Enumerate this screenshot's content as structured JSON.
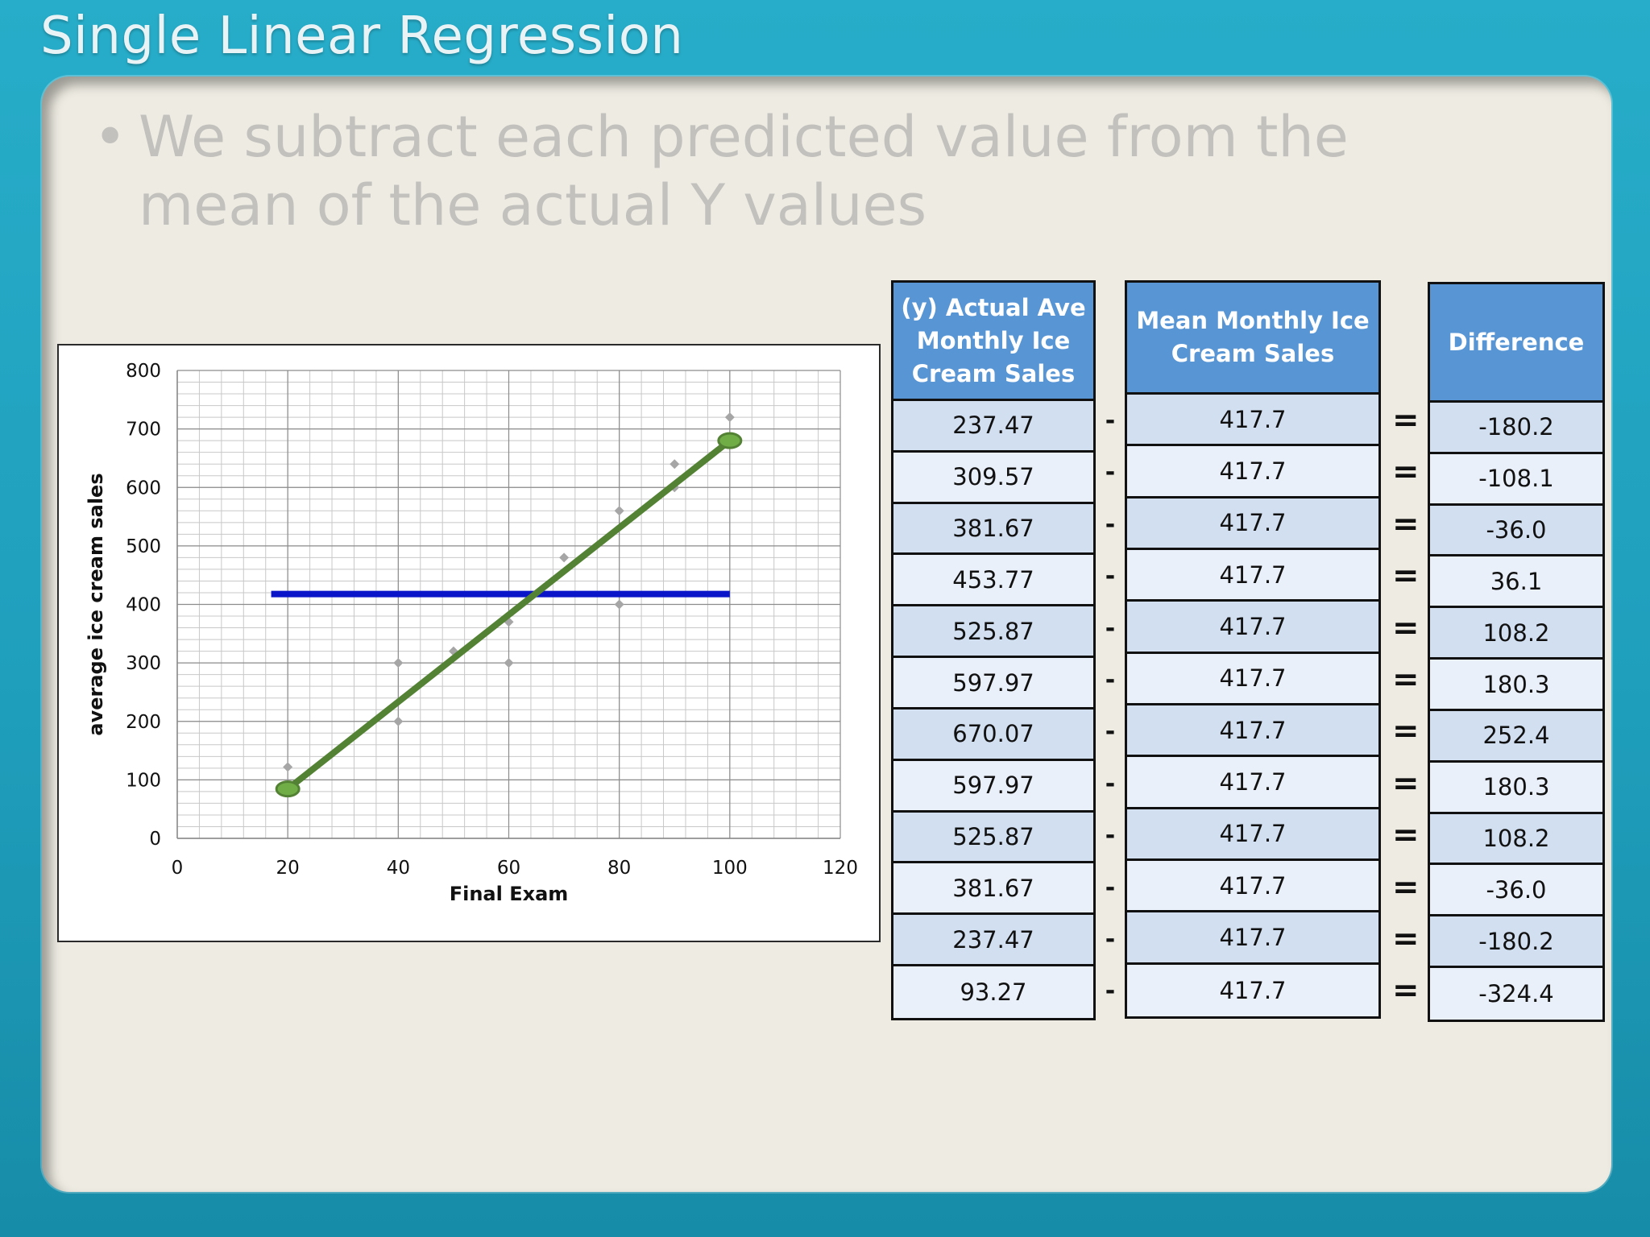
{
  "slide": {
    "title": "Single Linear Regression",
    "bullet": "We subtract each predicted value from the mean of the actual Y values"
  },
  "tables": {
    "actual": {
      "header": "(y) Actual Ave Monthly Ice Cream Sales",
      "values": [
        "237.47",
        "309.57",
        "381.67",
        "453.77",
        "525.87",
        "597.97",
        "670.07",
        "597.97",
        "525.87",
        "381.67",
        "237.47",
        "93.27"
      ]
    },
    "mean": {
      "header": "Mean Monthly Ice Cream Sales",
      "values": [
        "417.7",
        "417.7",
        "417.7",
        "417.7",
        "417.7",
        "417.7",
        "417.7",
        "417.7",
        "417.7",
        "417.7",
        "417.7",
        "417.7"
      ]
    },
    "difference": {
      "header": "Difference",
      "values": [
        "-180.2",
        "-108.1",
        "-36.0",
        "36.1",
        "108.2",
        "180.3",
        "252.4",
        "180.3",
        "108.2",
        "-36.0",
        "-180.2",
        "-324.4"
      ]
    },
    "minus_symbol": "-",
    "equals_symbol": "="
  },
  "chart_data": {
    "type": "scatter",
    "xlabel": "Final Exam",
    "ylabel": "average ice cream sales",
    "xlim": [
      0,
      120
    ],
    "ylim": [
      0,
      800
    ],
    "xticks": [
      0,
      20,
      40,
      60,
      80,
      100,
      120
    ],
    "yticks": [
      0,
      100,
      200,
      300,
      400,
      500,
      600,
      700,
      800
    ],
    "grid": true,
    "series": [
      {
        "kind": "points",
        "color": "#a6a6a6",
        "points": [
          [
            20,
            122
          ],
          [
            40,
            300
          ],
          [
            40,
            200
          ],
          [
            50,
            320
          ],
          [
            60,
            370
          ],
          [
            60,
            300
          ],
          [
            70,
            480
          ],
          [
            80,
            560
          ],
          [
            80,
            400
          ],
          [
            90,
            640
          ],
          [
            90,
            600
          ],
          [
            100,
            720
          ]
        ]
      },
      {
        "kind": "regression-line",
        "color": "#548235",
        "points": [
          [
            20,
            84.5
          ],
          [
            100,
            680
          ]
        ],
        "endpoint_markers": true
      },
      {
        "kind": "mean-line",
        "color": "#0a14c8",
        "points": [
          [
            17,
            417.7
          ],
          [
            100,
            417.7
          ]
        ]
      }
    ]
  }
}
